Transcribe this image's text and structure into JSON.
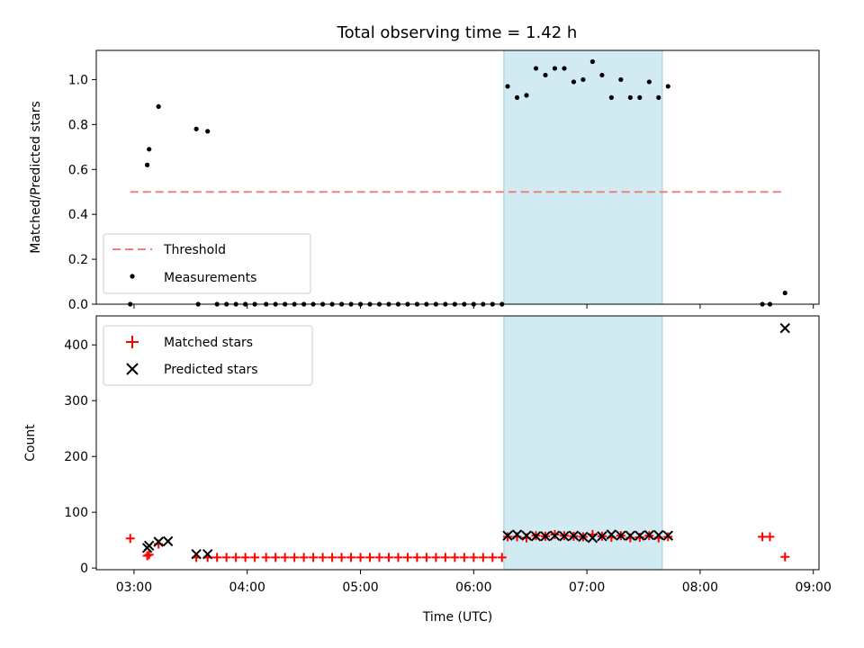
{
  "title": "Total observing time = 1.42 h",
  "chart_data": [
    {
      "type": "scatter",
      "panel": "top",
      "ylabel": "Matched/Predicted stars",
      "ylim": [
        0,
        1.13
      ],
      "yticks": [
        "0.0",
        "0.2",
        "0.4",
        "0.6",
        "0.8",
        "1.0"
      ],
      "threshold": {
        "name": "Threshold",
        "value": 0.5,
        "x_start": "02:58",
        "x_end": "08:45",
        "color": "#f08080"
      },
      "series": [
        {
          "name": "Measurements",
          "color": "#000000",
          "points": [
            [
              "02:58",
              0.0
            ],
            [
              "03:07",
              0.62
            ],
            [
              "03:08",
              0.69
            ],
            [
              "03:13",
              0.88
            ],
            [
              "03:33",
              0.78
            ],
            [
              "03:39",
              0.77
            ],
            [
              "03:34",
              0.0
            ],
            [
              "03:44",
              0.0
            ],
            [
              "03:49",
              0.0
            ],
            [
              "03:54",
              0.0
            ],
            [
              "03:59",
              0.0
            ],
            [
              "04:04",
              0.0
            ],
            [
              "04:10",
              0.0
            ],
            [
              "04:15",
              0.0
            ],
            [
              "04:20",
              0.0
            ],
            [
              "04:25",
              0.0
            ],
            [
              "04:30",
              0.0
            ],
            [
              "04:35",
              0.0
            ],
            [
              "04:40",
              0.0
            ],
            [
              "04:45",
              0.0
            ],
            [
              "04:50",
              0.0
            ],
            [
              "04:55",
              0.0
            ],
            [
              "05:00",
              0.0
            ],
            [
              "05:05",
              0.0
            ],
            [
              "05:10",
              0.0
            ],
            [
              "05:15",
              0.0
            ],
            [
              "05:20",
              0.0
            ],
            [
              "05:25",
              0.0
            ],
            [
              "05:30",
              0.0
            ],
            [
              "05:35",
              0.0
            ],
            [
              "05:40",
              0.0
            ],
            [
              "05:45",
              0.0
            ],
            [
              "05:50",
              0.0
            ],
            [
              "05:55",
              0.0
            ],
            [
              "06:00",
              0.0
            ],
            [
              "06:05",
              0.0
            ],
            [
              "06:10",
              0.0
            ],
            [
              "06:15",
              0.0
            ],
            [
              "06:18",
              0.97
            ],
            [
              "06:23",
              0.92
            ],
            [
              "06:28",
              0.93
            ],
            [
              "06:33",
              1.05
            ],
            [
              "06:38",
              1.02
            ],
            [
              "06:43",
              1.05
            ],
            [
              "06:48",
              1.05
            ],
            [
              "06:53",
              0.99
            ],
            [
              "06:58",
              1.0
            ],
            [
              "07:03",
              1.08
            ],
            [
              "07:08",
              1.02
            ],
            [
              "07:13",
              0.92
            ],
            [
              "07:18",
              1.0
            ],
            [
              "07:23",
              0.92
            ],
            [
              "07:28",
              0.92
            ],
            [
              "07:33",
              0.99
            ],
            [
              "07:38",
              0.92
            ],
            [
              "07:43",
              0.97
            ],
            [
              "08:33",
              0.0
            ],
            [
              "08:37",
              0.0
            ],
            [
              "08:45",
              0.05
            ]
          ]
        }
      ],
      "legend_location": "lower left"
    },
    {
      "type": "scatter",
      "panel": "bottom",
      "xlabel": "Time (UTC)",
      "ylabel": "Count",
      "ylim": [
        -3,
        452
      ],
      "yticks": [
        "0",
        "100",
        "200",
        "300",
        "400"
      ],
      "xlim": [
        "02:40",
        "09:03"
      ],
      "xticks": [
        "03:00",
        "04:00",
        "05:00",
        "06:00",
        "07:00",
        "08:00",
        "09:00"
      ],
      "series": [
        {
          "name": "Matched stars",
          "marker": "plus",
          "color": "#ff0000",
          "points": [
            [
              "02:58",
              53
            ],
            [
              "03:07",
              22
            ],
            [
              "03:08",
              24
            ],
            [
              "03:13",
              43
            ],
            [
              "03:33",
              19
            ],
            [
              "03:39",
              19
            ],
            [
              "03:44",
              19
            ],
            [
              "03:49",
              19
            ],
            [
              "03:54",
              19
            ],
            [
              "03:59",
              19
            ],
            [
              "04:04",
              19
            ],
            [
              "04:10",
              19
            ],
            [
              "04:15",
              19
            ],
            [
              "04:20",
              19
            ],
            [
              "04:25",
              19
            ],
            [
              "04:30",
              19
            ],
            [
              "04:35",
              19
            ],
            [
              "04:40",
              19
            ],
            [
              "04:45",
              19
            ],
            [
              "04:50",
              19
            ],
            [
              "04:55",
              19
            ],
            [
              "05:00",
              19
            ],
            [
              "05:05",
              19
            ],
            [
              "05:10",
              19
            ],
            [
              "05:15",
              19
            ],
            [
              "05:20",
              19
            ],
            [
              "05:25",
              19
            ],
            [
              "05:30",
              19
            ],
            [
              "05:35",
              19
            ],
            [
              "05:40",
              19
            ],
            [
              "05:45",
              19
            ],
            [
              "05:50",
              19
            ],
            [
              "05:55",
              19
            ],
            [
              "06:00",
              19
            ],
            [
              "06:05",
              19
            ],
            [
              "06:10",
              19
            ],
            [
              "06:15",
              19
            ],
            [
              "06:18",
              56
            ],
            [
              "06:23",
              56
            ],
            [
              "06:28",
              54
            ],
            [
              "06:33",
              58
            ],
            [
              "06:38",
              57
            ],
            [
              "06:43",
              60
            ],
            [
              "06:48",
              58
            ],
            [
              "06:53",
              57
            ],
            [
              "06:58",
              56
            ],
            [
              "07:03",
              60
            ],
            [
              "07:08",
              57
            ],
            [
              "07:13",
              55
            ],
            [
              "07:18",
              58
            ],
            [
              "07:23",
              54
            ],
            [
              "07:28",
              55
            ],
            [
              "07:33",
              58
            ],
            [
              "07:38",
              54
            ],
            [
              "07:43",
              56
            ],
            [
              "08:33",
              56
            ],
            [
              "08:37",
              56
            ],
            [
              "08:45",
              20
            ]
          ]
        },
        {
          "name": "Predicted stars",
          "marker": "x",
          "color": "#000000",
          "points": [
            [
              "03:07",
              36
            ],
            [
              "03:08",
              40
            ],
            [
              "03:13",
              47
            ],
            [
              "03:18",
              48
            ],
            [
              "03:33",
              25
            ],
            [
              "03:39",
              25
            ],
            [
              "06:18",
              58
            ],
            [
              "06:23",
              60
            ],
            [
              "06:28",
              58
            ],
            [
              "06:33",
              57
            ],
            [
              "06:38",
              57
            ],
            [
              "06:43",
              58
            ],
            [
              "06:48",
              57
            ],
            [
              "06:53",
              58
            ],
            [
              "06:58",
              56
            ],
            [
              "07:03",
              54
            ],
            [
              "07:08",
              57
            ],
            [
              "07:13",
              60
            ],
            [
              "07:18",
              58
            ],
            [
              "07:23",
              58
            ],
            [
              "07:28",
              58
            ],
            [
              "07:33",
              59
            ],
            [
              "07:38",
              59
            ],
            [
              "07:43",
              58
            ],
            [
              "08:45",
              430
            ]
          ]
        }
      ],
      "legend_location": "upper left"
    }
  ],
  "highlight_span": {
    "start": "06:16",
    "end": "07:40",
    "color": "#add8e6"
  }
}
